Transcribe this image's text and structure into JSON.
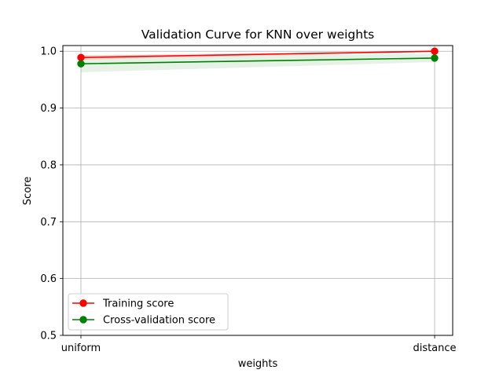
{
  "chart_data": {
    "type": "line",
    "title": "Validation Curve for KNN over weights",
    "xlabel": "weights",
    "ylabel": "Score",
    "categories": [
      "uniform",
      "distance"
    ],
    "ylim": [
      0.5,
      1.01
    ],
    "yticks": [
      0.5,
      0.6,
      0.7,
      0.8,
      0.9,
      1.0
    ],
    "ytick_labels": [
      "0.5",
      "0.6",
      "0.7",
      "0.8",
      "0.9",
      "1.0"
    ],
    "grid": true,
    "legend_position": "lower-left",
    "series": [
      {
        "name": "Training score",
        "color": "#ff0000",
        "values": [
          0.989,
          1.0
        ],
        "band_lower": [
          0.985,
          0.999
        ],
        "band_upper": [
          0.993,
          1.0
        ]
      },
      {
        "name": "Cross-validation score",
        "color": "#008000",
        "values": [
          0.978,
          0.988
        ],
        "band_lower": [
          0.963,
          0.981
        ],
        "band_upper": [
          0.993,
          0.995
        ]
      }
    ]
  }
}
